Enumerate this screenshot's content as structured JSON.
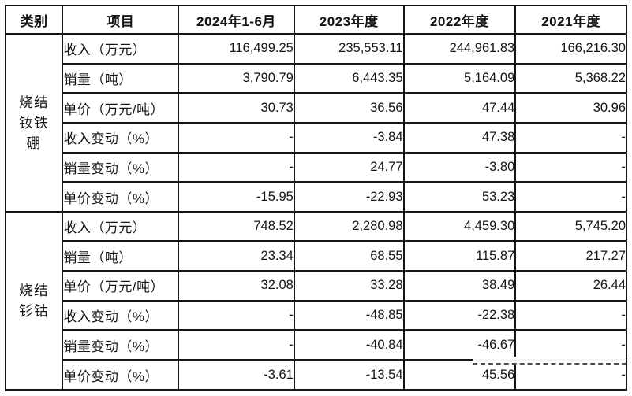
{
  "colors": {
    "background": "#ffffff",
    "border": "#161616",
    "text": "#141414"
  },
  "table": {
    "headers": [
      "类别",
      "项目",
      "2024年1-6月",
      "2023年度",
      "2022年度",
      "2021年度"
    ],
    "sections": [
      {
        "category": "烧结钕铁硼",
        "category_lines": [
          "烧结",
          "钕铁",
          "硼"
        ],
        "rows": [
          {
            "item": "收入（万元）",
            "values": [
              "116,499.25",
              "235,553.11",
              "244,961.83",
              "166,216.30"
            ]
          },
          {
            "item": "销量（吨）",
            "values": [
              "3,790.79",
              "6,443.35",
              "5,164.09",
              "5,368.22"
            ]
          },
          {
            "item": "单价（万元/吨）",
            "values": [
              "30.73",
              "36.56",
              "47.44",
              "30.96"
            ]
          },
          {
            "item": "收入变动（%）",
            "values": [
              "-",
              "-3.84",
              "47.38",
              "-"
            ]
          },
          {
            "item": "销量变动（%）",
            "values": [
              "-",
              "24.77",
              "-3.80",
              "-"
            ]
          },
          {
            "item": "单价变动（%）",
            "values": [
              "-15.95",
              "-22.93",
              "53.23",
              "-"
            ]
          }
        ]
      },
      {
        "category": "烧结钐钴",
        "category_lines": [
          "烧结",
          "钐钴"
        ],
        "rows": [
          {
            "item": "收入（万元）",
            "values": [
              "748.52",
              "2,280.98",
              "4,459.30",
              "5,745.20"
            ]
          },
          {
            "item": "销量（吨）",
            "values": [
              "23.34",
              "68.55",
              "115.87",
              "217.27"
            ]
          },
          {
            "item": "单价（万元/吨）",
            "values": [
              "32.08",
              "33.28",
              "38.49",
              "26.44"
            ]
          },
          {
            "item": "收入变动（%）",
            "values": [
              "-",
              "-48.85",
              "-22.38",
              "-"
            ]
          },
          {
            "item": "销量变动（%）",
            "values": [
              "-",
              "-40.84",
              "-46.67",
              "-"
            ]
          },
          {
            "item": "单价变动（%）",
            "values": [
              "-3.61",
              "-13.54",
              "45.56",
              "-"
            ]
          }
        ]
      }
    ]
  }
}
